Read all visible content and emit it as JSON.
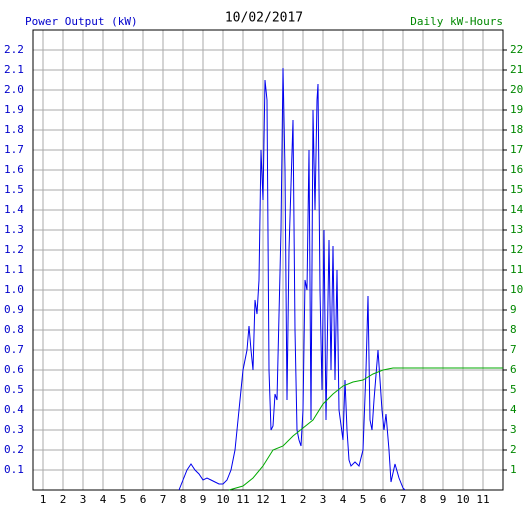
{
  "chart_data": {
    "type": "line",
    "title": "10/02/2017",
    "y_label": "Power Output (kW)",
    "y2_label": "Daily kW-Hours",
    "y_label_color": "#0000cc",
    "y2_label_color": "#008800",
    "grid": true,
    "xlim": [
      0.5,
      24
    ],
    "ylim": [
      0,
      2.3
    ],
    "y2lim": [
      0,
      23
    ],
    "xticks": [
      1,
      2,
      3,
      4,
      5,
      6,
      7,
      8,
      9,
      10,
      11,
      12,
      {
        "value": 13,
        "label": "1"
      },
      {
        "value": 14,
        "label": "2"
      },
      {
        "value": 15,
        "label": "3"
      },
      {
        "value": 16,
        "label": "4"
      },
      {
        "value": 17,
        "label": "5"
      },
      {
        "value": 18,
        "label": "6"
      },
      {
        "value": 19,
        "label": "7"
      },
      {
        "value": 20,
        "label": "8"
      },
      {
        "value": 21,
        "label": "9"
      },
      {
        "value": 22,
        "label": "10"
      },
      {
        "value": 23,
        "label": "11"
      }
    ],
    "yticks": [
      0.1,
      0.2,
      0.3,
      0.4,
      0.5,
      0.6,
      0.7,
      0.8,
      0.9,
      {
        "value": 1,
        "label": "1.0"
      },
      1.1,
      1.2,
      1.3,
      1.4,
      1.5,
      1.6,
      1.7,
      1.8,
      1.9,
      {
        "value": 2,
        "label": "2.0"
      },
      2.1,
      2.2
    ],
    "y2ticks": [
      1,
      2,
      3,
      4,
      5,
      6,
      7,
      8,
      9,
      10,
      11,
      12,
      13,
      14,
      15,
      16,
      17,
      18,
      19,
      20,
      21,
      22
    ],
    "series": [
      {
        "name": "Power Output (kW)",
        "color": "#0000ee",
        "axis": "y",
        "x": [
          7.8,
          8.0,
          8.2,
          8.4,
          8.6,
          8.8,
          9.0,
          9.2,
          9.4,
          9.6,
          9.8,
          10.0,
          10.2,
          10.4,
          10.6,
          10.8,
          11.0,
          11.2,
          11.3,
          11.4,
          11.5,
          11.6,
          11.7,
          11.8,
          11.9,
          12.0,
          12.1,
          12.2,
          12.3,
          12.4,
          12.5,
          12.6,
          12.7,
          12.9,
          13.0,
          13.1,
          13.2,
          13.3,
          13.5,
          13.6,
          13.7,
          13.8,
          13.9,
          14.0,
          14.1,
          14.2,
          14.3,
          14.4,
          14.5,
          14.6,
          14.7,
          14.75,
          14.85,
          14.95,
          15.05,
          15.15,
          15.3,
          15.4,
          15.5,
          15.6,
          15.7,
          15.8,
          16.0,
          16.1,
          16.2,
          16.3,
          16.4,
          16.6,
          16.8,
          17.0,
          17.15,
          17.25,
          17.35,
          17.45,
          17.55,
          17.75,
          17.85,
          17.95,
          18.05,
          18.15,
          18.3,
          18.4,
          18.6,
          18.8,
          19.0,
          19.1
        ],
        "values": [
          0,
          0.05,
          0.1,
          0.13,
          0.1,
          0.08,
          0.05,
          0.06,
          0.05,
          0.04,
          0.03,
          0.03,
          0.05,
          0.1,
          0.2,
          0.4,
          0.6,
          0.7,
          0.82,
          0.7,
          0.6,
          0.95,
          0.88,
          1.05,
          1.7,
          1.45,
          2.05,
          1.95,
          0.6,
          0.3,
          0.32,
          0.48,
          0.45,
          1.3,
          2.11,
          1.6,
          0.45,
          1.2,
          1.85,
          0.8,
          0.3,
          0.25,
          0.22,
          0.4,
          1.05,
          1.0,
          1.7,
          0.35,
          1.9,
          1.4,
          1.95,
          2.03,
          1.0,
          0.5,
          1.3,
          0.35,
          1.25,
          0.6,
          1.22,
          0.55,
          1.1,
          0.4,
          0.25,
          0.55,
          0.3,
          0.15,
          0.12,
          0.14,
          0.12,
          0.2,
          0.6,
          0.97,
          0.35,
          0.3,
          0.45,
          0.7,
          0.55,
          0.4,
          0.3,
          0.38,
          0.2,
          0.04,
          0.13,
          0.06,
          0.01,
          0
        ]
      },
      {
        "name": "Daily kW-Hours",
        "color": "#00aa00",
        "axis": "y2",
        "x": [
          10.3,
          11.0,
          11.5,
          12.0,
          12.5,
          13.0,
          13.5,
          14.0,
          14.5,
          15.0,
          15.5,
          16.0,
          16.5,
          17.0,
          17.5,
          18.0,
          18.5,
          19.0,
          24.0
        ],
        "values": [
          0,
          0.2,
          0.6,
          1.2,
          2.0,
          2.2,
          2.7,
          3.1,
          3.5,
          4.3,
          4.8,
          5.2,
          5.4,
          5.5,
          5.8,
          6.0,
          6.1,
          6.1,
          6.1
        ]
      }
    ]
  }
}
